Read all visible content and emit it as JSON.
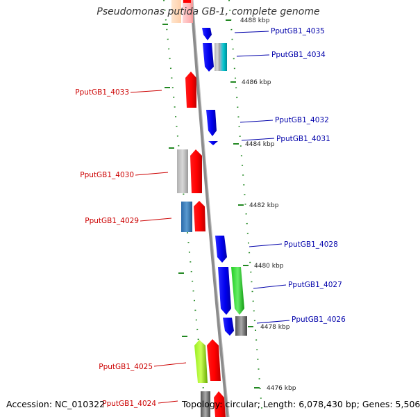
{
  "title": "Pseudomonas putida GB-1, complete genome",
  "footer": {
    "accession": "Accession: NC_010322",
    "topology": "Topology: circular; Length: 6,078,430 bp; Genes: 5,506"
  },
  "colors": {
    "backbone": "#888888",
    "forward_label": "#cc0000",
    "reverse_label": "#0000aa",
    "tick": "#228822"
  },
  "ticks": [
    "4488 kbp",
    "4486 kbp",
    "4484 kbp",
    "4482 kbp",
    "4480 kbp",
    "4478 kbp",
    "4476 kbp"
  ],
  "genes_forward": [
    "PputGB1_4033",
    "PputGB1_4030",
    "PputGB1_4029",
    "PputGB1_4025",
    "PputGB1_4024"
  ],
  "genes_reverse": [
    "PputGB1_4035",
    "PputGB1_4034",
    "PputGB1_4032",
    "PputGB1_4031",
    "PputGB1_4028",
    "PputGB1_4027",
    "PputGB1_4026"
  ]
}
